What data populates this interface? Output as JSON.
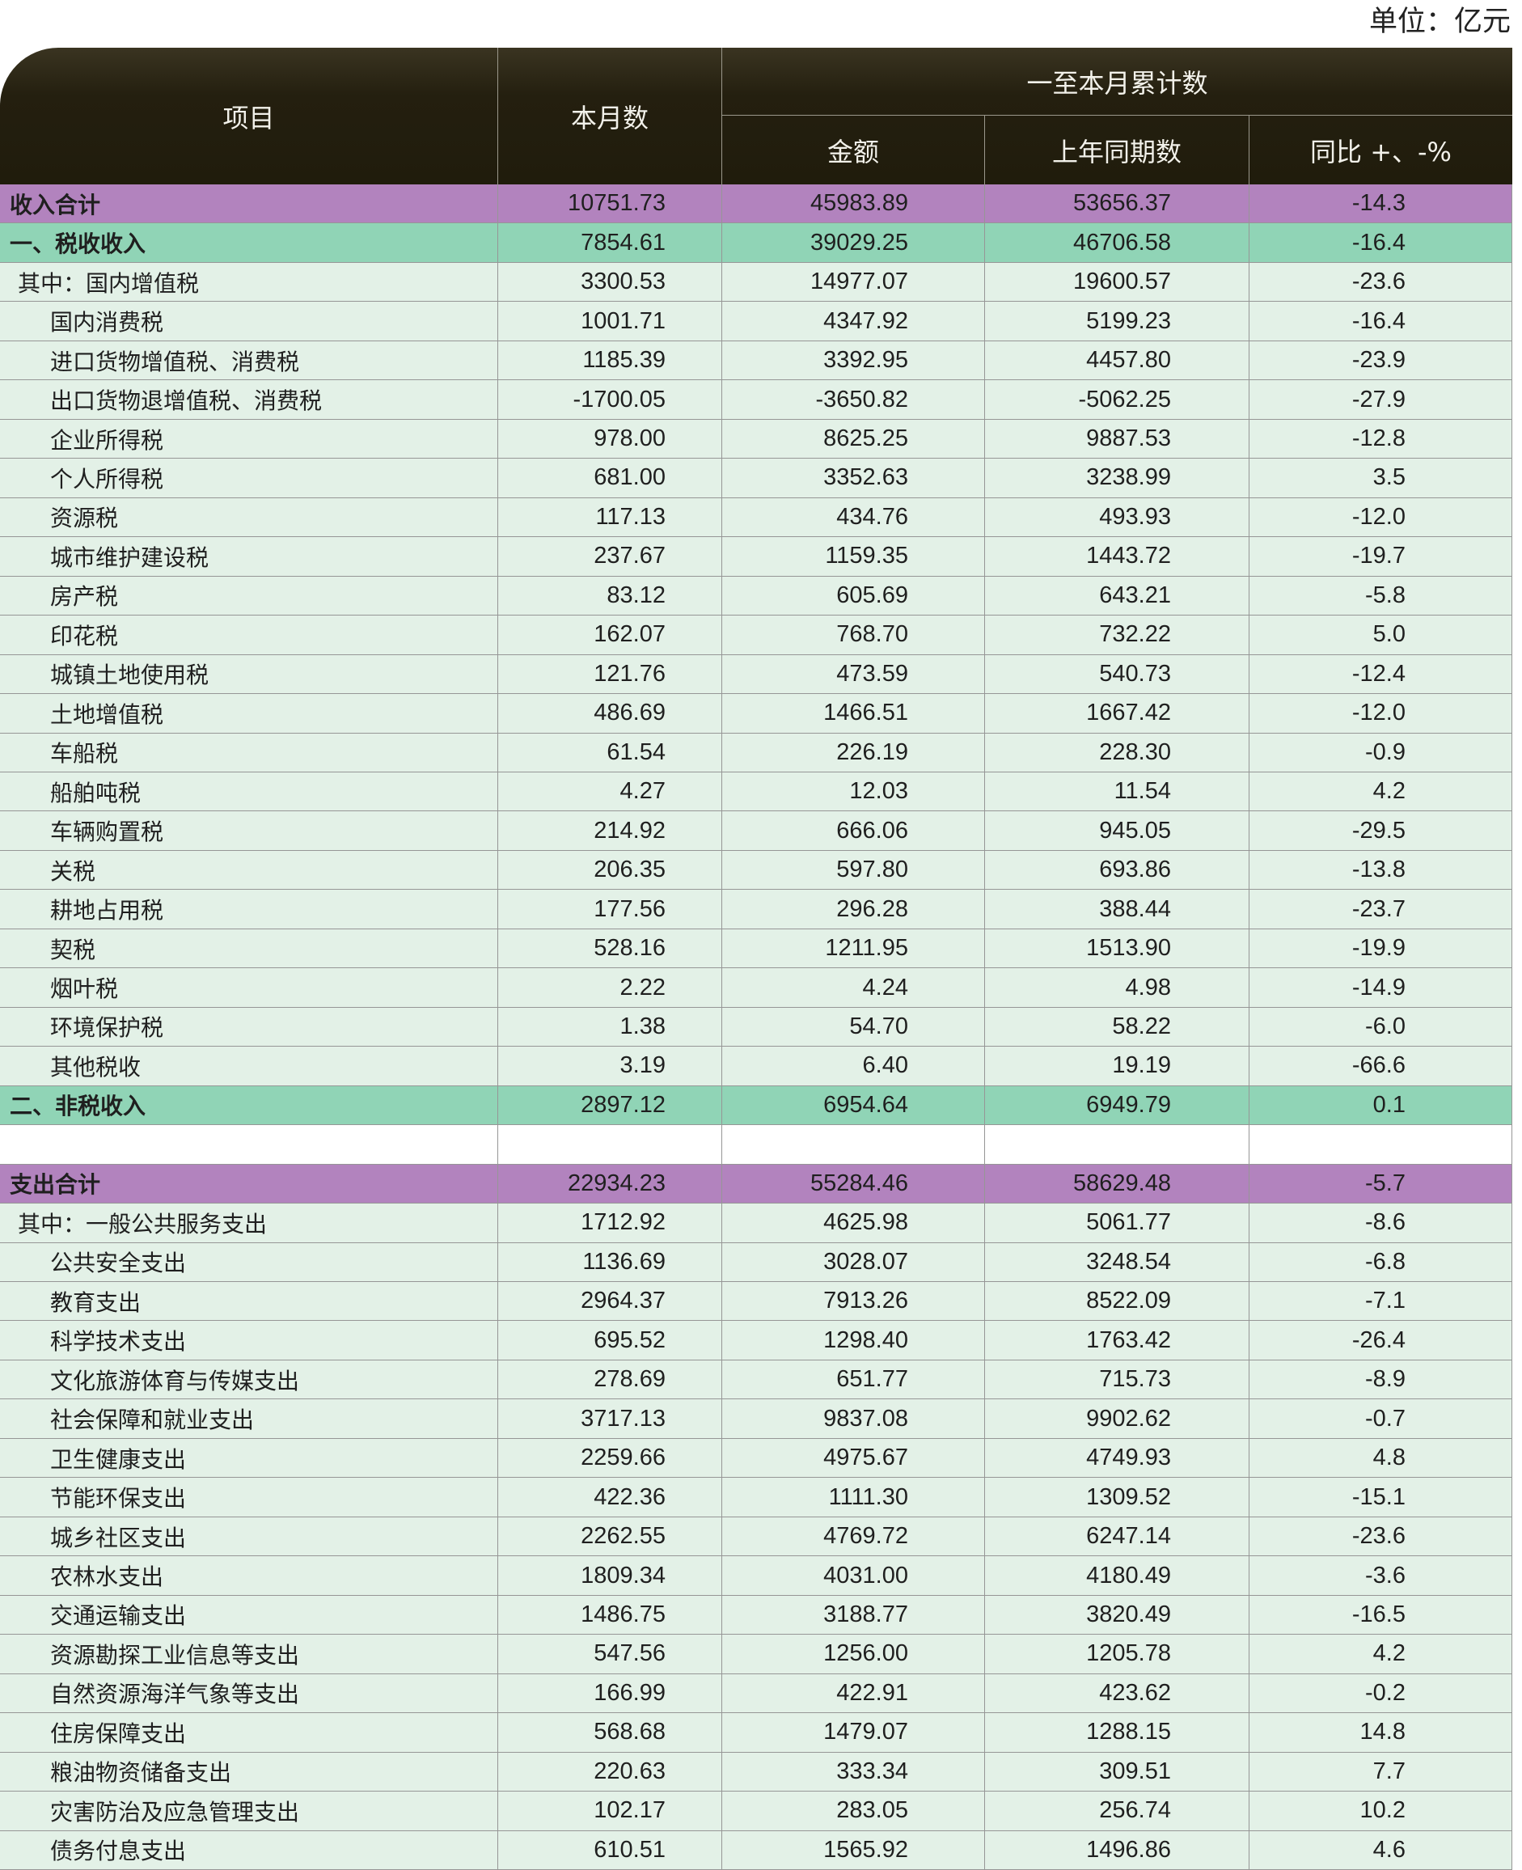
{
  "unit_label": "单位：亿元",
  "header": {
    "item": "项目",
    "month": "本月数",
    "cumulative": "一至本月累计数",
    "amount": "金额",
    "prev_year": "上年同期数",
    "yoy": "同比 +、-%"
  },
  "income": {
    "total": {
      "label": "收入合计",
      "values": [
        "10751.73",
        "45983.89",
        "53656.37",
        "-14.3"
      ]
    },
    "tax": {
      "label": "一、税收收入",
      "values": [
        "7854.61",
        "39029.25",
        "46706.58",
        "-16.4"
      ],
      "items": [
        {
          "label": "其中：国内增值税",
          "values": [
            "3300.53",
            "14977.07",
            "19600.57",
            "-23.6"
          ]
        },
        {
          "label": "国内消费税",
          "values": [
            "1001.71",
            "4347.92",
            "5199.23",
            "-16.4"
          ]
        },
        {
          "label": "进口货物增值税、消费税",
          "values": [
            "1185.39",
            "3392.95",
            "4457.80",
            "-23.9"
          ]
        },
        {
          "label": "出口货物退增值税、消费税",
          "values": [
            "-1700.05",
            "-3650.82",
            "-5062.25",
            "-27.9"
          ]
        },
        {
          "label": "企业所得税",
          "values": [
            "978.00",
            "8625.25",
            "9887.53",
            "-12.8"
          ]
        },
        {
          "label": "个人所得税",
          "values": [
            "681.00",
            "3352.63",
            "3238.99",
            "3.5"
          ]
        },
        {
          "label": "资源税",
          "values": [
            "117.13",
            "434.76",
            "493.93",
            "-12.0"
          ]
        },
        {
          "label": "城市维护建设税",
          "values": [
            "237.67",
            "1159.35",
            "1443.72",
            "-19.7"
          ]
        },
        {
          "label": "房产税",
          "values": [
            "83.12",
            "605.69",
            "643.21",
            "-5.8"
          ]
        },
        {
          "label": "印花税",
          "values": [
            "162.07",
            "768.70",
            "732.22",
            "5.0"
          ]
        },
        {
          "label": "城镇土地使用税",
          "values": [
            "121.76",
            "473.59",
            "540.73",
            "-12.4"
          ]
        },
        {
          "label": "土地增值税",
          "values": [
            "486.69",
            "1466.51",
            "1667.42",
            "-12.0"
          ]
        },
        {
          "label": "车船税",
          "values": [
            "61.54",
            "226.19",
            "228.30",
            "-0.9"
          ]
        },
        {
          "label": "船舶吨税",
          "values": [
            "4.27",
            "12.03",
            "11.54",
            "4.2"
          ]
        },
        {
          "label": "车辆购置税",
          "values": [
            "214.92",
            "666.06",
            "945.05",
            "-29.5"
          ]
        },
        {
          "label": "关税",
          "values": [
            "206.35",
            "597.80",
            "693.86",
            "-13.8"
          ]
        },
        {
          "label": "耕地占用税",
          "values": [
            "177.56",
            "296.28",
            "388.44",
            "-23.7"
          ]
        },
        {
          "label": "契税",
          "values": [
            "528.16",
            "1211.95",
            "1513.90",
            "-19.9"
          ]
        },
        {
          "label": "烟叶税",
          "values": [
            "2.22",
            "4.24",
            "4.98",
            "-14.9"
          ]
        },
        {
          "label": "环境保护税",
          "values": [
            "1.38",
            "54.70",
            "58.22",
            "-6.0"
          ]
        },
        {
          "label": "其他税收",
          "values": [
            "3.19",
            "6.40",
            "19.19",
            "-66.6"
          ]
        }
      ]
    },
    "non_tax": {
      "label": "二、非税收入",
      "values": [
        "2897.12",
        "6954.64",
        "6949.79",
        "0.1"
      ]
    }
  },
  "expenditure": {
    "total": {
      "label": "支出合计",
      "values": [
        "22934.23",
        "55284.46",
        "58629.48",
        "-5.7"
      ]
    },
    "items": [
      {
        "label": "其中：一般公共服务支出",
        "values": [
          "1712.92",
          "4625.98",
          "5061.77",
          "-8.6"
        ]
      },
      {
        "label": "公共安全支出",
        "values": [
          "1136.69",
          "3028.07",
          "3248.54",
          "-6.8"
        ]
      },
      {
        "label": "教育支出",
        "values": [
          "2964.37",
          "7913.26",
          "8522.09",
          "-7.1"
        ]
      },
      {
        "label": "科学技术支出",
        "values": [
          "695.52",
          "1298.40",
          "1763.42",
          "-26.4"
        ]
      },
      {
        "label": "文化旅游体育与传媒支出",
        "values": [
          "278.69",
          "651.77",
          "715.73",
          "-8.9"
        ]
      },
      {
        "label": "社会保障和就业支出",
        "values": [
          "3717.13",
          "9837.08",
          "9902.62",
          "-0.7"
        ]
      },
      {
        "label": "卫生健康支出",
        "values": [
          "2259.66",
          "4975.67",
          "4749.93",
          "4.8"
        ]
      },
      {
        "label": "节能环保支出",
        "values": [
          "422.36",
          "1111.30",
          "1309.52",
          "-15.1"
        ]
      },
      {
        "label": "城乡社区支出",
        "values": [
          "2262.55",
          "4769.72",
          "6247.14",
          "-23.6"
        ]
      },
      {
        "label": "农林水支出",
        "values": [
          "1809.34",
          "4031.00",
          "4180.49",
          "-3.6"
        ]
      },
      {
        "label": "交通运输支出",
        "values": [
          "1486.75",
          "3188.77",
          "3820.49",
          "-16.5"
        ]
      },
      {
        "label": "资源勘探工业信息等支出",
        "values": [
          "547.56",
          "1256.00",
          "1205.78",
          "4.2"
        ]
      },
      {
        "label": "自然资源海洋气象等支出",
        "values": [
          "166.99",
          "422.91",
          "423.62",
          "-0.2"
        ]
      },
      {
        "label": "住房保障支出",
        "values": [
          "568.68",
          "1479.07",
          "1288.15",
          "14.8"
        ]
      },
      {
        "label": "粮油物资储备支出",
        "values": [
          "220.63",
          "333.34",
          "309.51",
          "7.7"
        ]
      },
      {
        "label": "灾害防治及应急管理支出",
        "values": [
          "102.17",
          "283.05",
          "256.74",
          "10.2"
        ]
      },
      {
        "label": "债务付息支出",
        "values": [
          "610.51",
          "1565.92",
          "1496.86",
          "4.6"
        ]
      }
    ]
  }
}
